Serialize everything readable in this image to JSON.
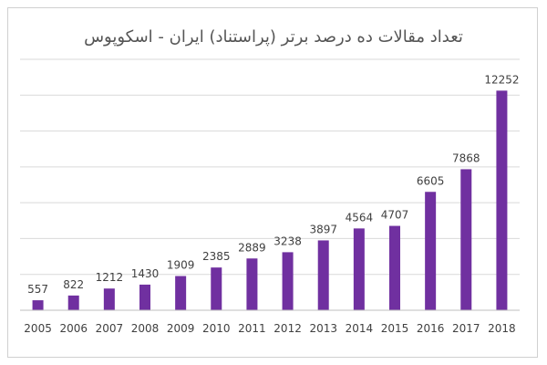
{
  "chart_data": {
    "type": "bar",
    "title": "تعداد مقالات ده درصد برتر (پراستناد) ایران - اسکوپوس",
    "xlabel": "",
    "ylabel": "",
    "categories": [
      "2005",
      "2006",
      "2007",
      "2008",
      "2009",
      "2010",
      "2011",
      "2012",
      "2013",
      "2014",
      "2015",
      "2016",
      "2017",
      "2018"
    ],
    "values": [
      557,
      822,
      1212,
      1430,
      1909,
      2385,
      2889,
      3238,
      3897,
      4564,
      4707,
      6605,
      7868,
      12252
    ],
    "ylim": [
      0,
      14000
    ],
    "grid": true,
    "y_tick_labels_visible": false,
    "legend": "none",
    "bar_color": "#7030a0"
  }
}
